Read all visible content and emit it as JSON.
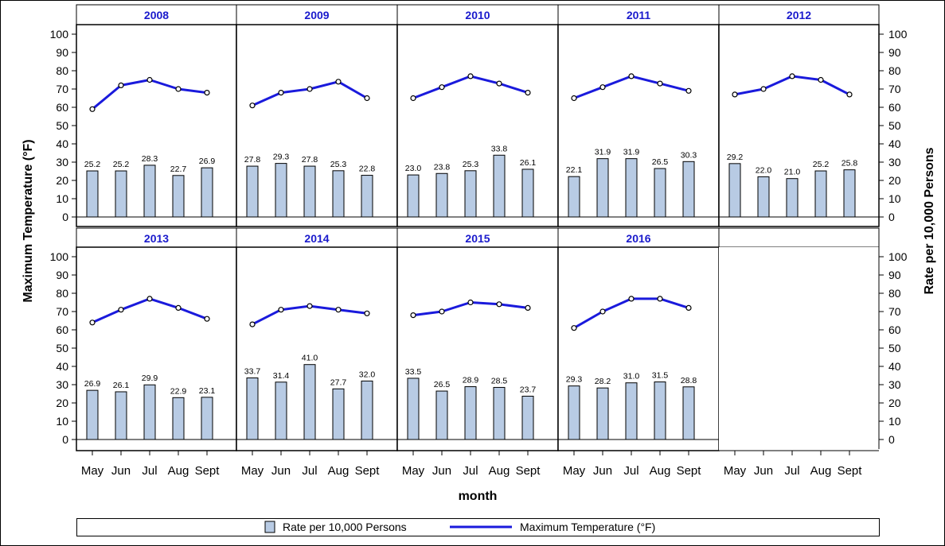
{
  "chart_data": {
    "type": "bar-line-panel",
    "xlabel": "month",
    "ylabel_left": "Maximum Temperature (°F)",
    "ylabel_right": "Rate per 10,000 Persons",
    "ylim": [
      0,
      100
    ],
    "yticks": [
      "0",
      "10",
      "20",
      "30",
      "40",
      "50",
      "60",
      "70",
      "80",
      "90",
      "100"
    ],
    "categories": [
      "May",
      "Jun",
      "Jul",
      "Aug",
      "Sept"
    ],
    "legend": {
      "placement": "bottom",
      "bar_label": "Rate per 10,000 Persons",
      "line_label": "Maximum Temperature (°F)"
    },
    "colors": {
      "bar_fill": "#b8cbe4",
      "line": "#1a1adc",
      "year_label": "#1a1acc",
      "frame": "#000000"
    },
    "panels": [
      {
        "year": "2008",
        "rate": [
          25.2,
          25.2,
          28.3,
          22.7,
          26.9
        ],
        "rate_labels": [
          "25.2",
          "25.2",
          "28.3",
          "22.7",
          "26.9"
        ],
        "temp": [
          59,
          72,
          75,
          70,
          68
        ]
      },
      {
        "year": "2009",
        "rate": [
          27.8,
          29.3,
          27.8,
          25.3,
          22.8
        ],
        "rate_labels": [
          "27.8",
          "29.3",
          "27.8",
          "25.3",
          "22.8"
        ],
        "temp": [
          61,
          68,
          70,
          74,
          65
        ]
      },
      {
        "year": "2010",
        "rate": [
          23.0,
          23.8,
          25.3,
          33.8,
          26.1
        ],
        "rate_labels": [
          "23.0",
          "23.8",
          "25.3",
          "33.8",
          "26.1"
        ],
        "temp": [
          65,
          71,
          77,
          73,
          68
        ]
      },
      {
        "year": "2011",
        "rate": [
          22.1,
          31.9,
          31.9,
          26.5,
          30.3
        ],
        "rate_labels": [
          "22.1",
          "31.9",
          "31.9",
          "26.5",
          "30.3"
        ],
        "temp": [
          65,
          71,
          77,
          73,
          69
        ]
      },
      {
        "year": "2012",
        "rate": [
          29.2,
          22.0,
          21.0,
          25.2,
          25.8
        ],
        "rate_labels": [
          "29.2",
          "22.0",
          "21.0",
          "25.2",
          "25.8"
        ],
        "temp": [
          67,
          70,
          77,
          75,
          67
        ]
      },
      {
        "year": "2013",
        "rate": [
          26.9,
          26.1,
          29.9,
          22.9,
          23.1
        ],
        "rate_labels": [
          "26.9",
          "26.1",
          "29.9",
          "22.9",
          "23.1"
        ],
        "temp": [
          64,
          71,
          77,
          72,
          66
        ]
      },
      {
        "year": "2014",
        "rate": [
          33.7,
          31.4,
          41.0,
          27.7,
          32.0
        ],
        "rate_labels": [
          "33.7",
          "31.4",
          "41.0",
          "27.7",
          "32.0"
        ],
        "temp": [
          63,
          71,
          73,
          71,
          69
        ]
      },
      {
        "year": "2015",
        "rate": [
          33.5,
          26.5,
          28.9,
          28.5,
          23.7
        ],
        "rate_labels": [
          "33.5",
          "26.5",
          "28.9",
          "28.5",
          "23.7"
        ],
        "temp": [
          68,
          70,
          75,
          74,
          72
        ]
      },
      {
        "year": "2016",
        "rate": [
          29.3,
          28.2,
          31.0,
          31.5,
          28.8
        ],
        "rate_labels": [
          "29.3",
          "28.2",
          "31.0",
          "31.5",
          "28.8"
        ],
        "temp": [
          61,
          70,
          77,
          77,
          72
        ]
      }
    ]
  }
}
